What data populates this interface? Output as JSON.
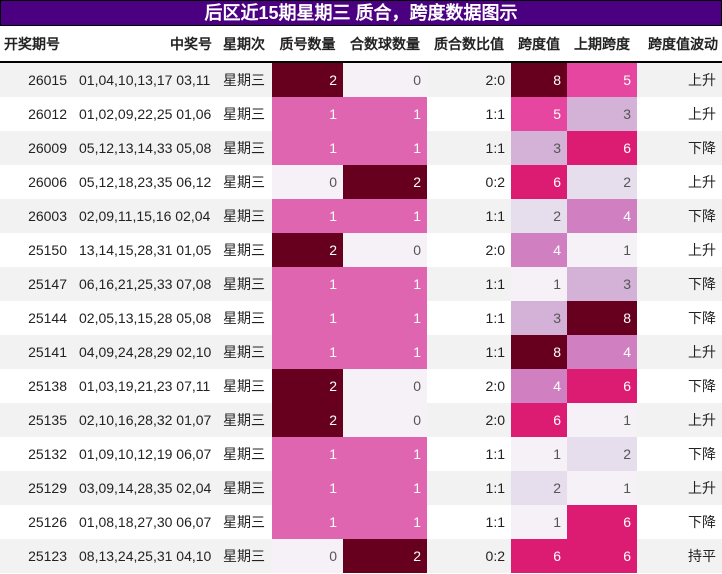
{
  "title": "后区近15期星期三 质合，跨度数据图示",
  "headers": [
    "开奖期号",
    "中奖号",
    "星期次",
    "质号数量",
    "合数球数量",
    "质合数比值",
    "跨度值",
    "上期跨度",
    "跨度值波动"
  ],
  "rows": [
    [
      "26015",
      "01,04,10,13,17 03,11",
      "星期三",
      "2",
      "0",
      "2:0",
      "8",
      "5",
      "上升"
    ],
    [
      "26012",
      "01,02,09,22,25 01,06",
      "星期三",
      "1",
      "1",
      "1:1",
      "5",
      "3",
      "上升"
    ],
    [
      "26009",
      "05,12,13,14,33 05,08",
      "星期三",
      "1",
      "1",
      "1:1",
      "3",
      "6",
      "下降"
    ],
    [
      "26006",
      "05,12,18,23,35 06,12",
      "星期三",
      "0",
      "2",
      "0:2",
      "6",
      "2",
      "上升"
    ],
    [
      "26003",
      "02,09,11,15,16 02,04",
      "星期三",
      "1",
      "1",
      "1:1",
      "2",
      "4",
      "下降"
    ],
    [
      "25150",
      "13,14,15,28,31 01,05",
      "星期三",
      "2",
      "0",
      "2:0",
      "4",
      "1",
      "上升"
    ],
    [
      "25147",
      "06,16,21,25,33 07,08",
      "星期三",
      "1",
      "1",
      "1:1",
      "1",
      "3",
      "下降"
    ],
    [
      "25144",
      "02,05,13,15,28 05,08",
      "星期三",
      "1",
      "1",
      "1:1",
      "3",
      "8",
      "下降"
    ],
    [
      "25141",
      "04,09,24,28,29 02,10",
      "星期三",
      "1",
      "1",
      "1:1",
      "8",
      "4",
      "上升"
    ],
    [
      "25138",
      "01,03,19,21,23 07,11",
      "星期三",
      "2",
      "0",
      "2:0",
      "4",
      "6",
      "下降"
    ],
    [
      "25135",
      "02,10,16,28,32 01,07",
      "星期三",
      "2",
      "0",
      "2:0",
      "6",
      "1",
      "上升"
    ],
    [
      "25132",
      "01,09,10,12,19 06,07",
      "星期三",
      "1",
      "1",
      "1:1",
      "1",
      "2",
      "下降"
    ],
    [
      "25129",
      "03,09,14,28,35 02,04",
      "星期三",
      "1",
      "1",
      "1:1",
      "2",
      "1",
      "上升"
    ],
    [
      "25126",
      "01,08,18,27,30 06,07",
      "星期三",
      "1",
      "1",
      "1:1",
      "1",
      "6",
      "下降"
    ],
    [
      "25123",
      "08,13,24,25,31 04,10",
      "星期三",
      "0",
      "2",
      "0:2",
      "6",
      "6",
      "持平"
    ]
  ],
  "colors": {
    "count": {
      "0": "#f5f1f7",
      "1": "#df65b0",
      "2": "#67001f"
    },
    "span": {
      "1": "#f5f1f7",
      "2": "#e6dded",
      "3": "#d4b2d8",
      "4": "#d080c0",
      "5": "#e645a0",
      "6": "#dc1c72",
      "8": "#67001f"
    }
  }
}
